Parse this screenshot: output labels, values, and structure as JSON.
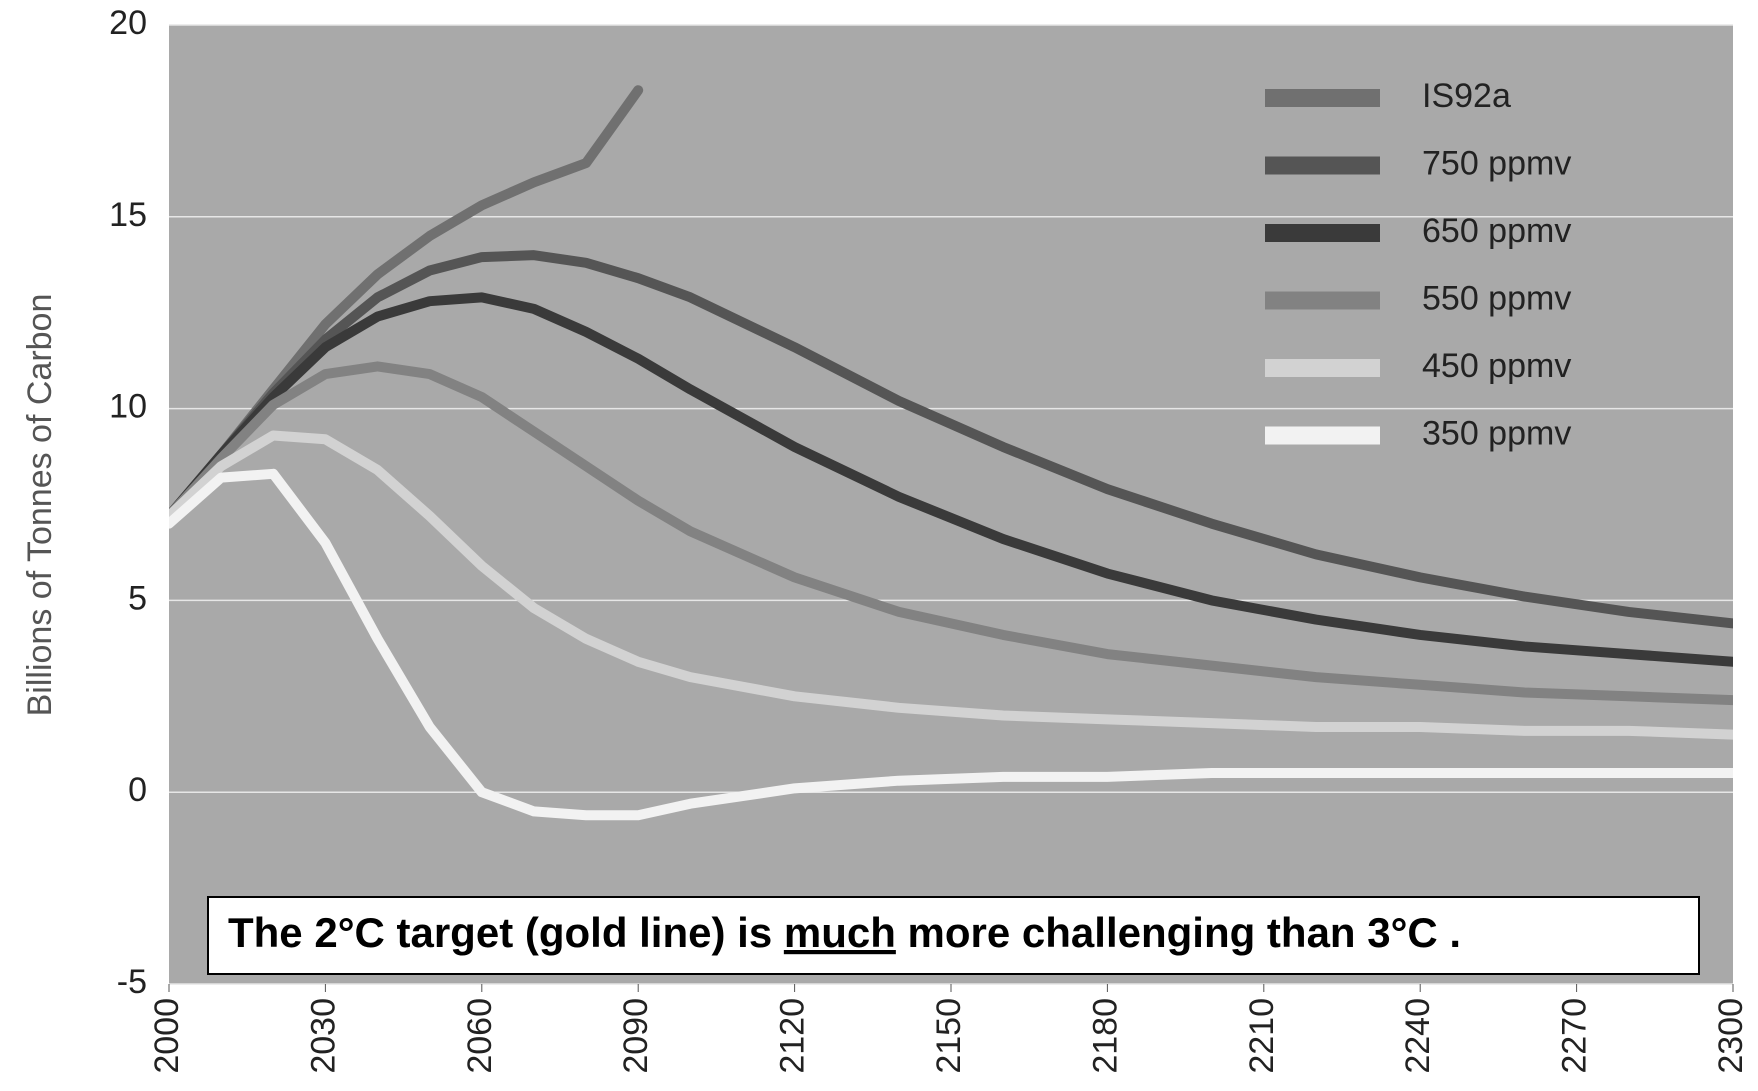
{
  "chart_data": {
    "type": "line",
    "y_label": "Billions of Tonnes of Carbon",
    "annotation": {
      "before": "The 2°C target (gold line) is ",
      "emphasis": "much",
      "after": " more challenging than  3°C ."
    },
    "x": [
      2000,
      2010,
      2020,
      2030,
      2040,
      2050,
      2060,
      2070,
      2080,
      2090,
      2100,
      2120,
      2140,
      2160,
      2180,
      2200,
      2220,
      2240,
      2260,
      2280,
      2300
    ],
    "series": [
      {
        "name": "IS92a",
        "color": "#707070",
        "values": [
          7.2,
          8.8,
          10.5,
          12.2,
          13.5,
          14.5,
          15.3,
          15.9,
          16.4,
          18.3,
          null,
          null,
          null,
          null,
          null,
          null,
          null,
          null,
          null,
          null,
          null
        ]
      },
      {
        "name": "750 ppmv",
        "color": "#555555",
        "values": [
          7.2,
          8.8,
          10.4,
          11.8,
          12.9,
          13.6,
          13.95,
          14,
          13.8,
          13.4,
          12.9,
          11.6,
          10.2,
          9.0,
          7.9,
          7.0,
          6.2,
          5.6,
          5.1,
          4.7,
          4.4
        ]
      },
      {
        "name": "650 ppmv",
        "color": "#3a3a3a",
        "values": [
          7.2,
          8.8,
          10.3,
          11.6,
          12.4,
          12.8,
          12.9,
          12.6,
          12.0,
          11.3,
          10.5,
          9.0,
          7.7,
          6.6,
          5.7,
          5.0,
          4.5,
          4.1,
          3.8,
          3.6,
          3.4
        ]
      },
      {
        "name": "550 ppmv",
        "color": "#828282",
        "values": [
          7.2,
          8.7,
          10.1,
          10.9,
          11.1,
          10.9,
          10.3,
          9.4,
          8.5,
          7.6,
          6.8,
          5.6,
          4.7,
          4.1,
          3.6,
          3.3,
          3.0,
          2.8,
          2.6,
          2.5,
          2.4
        ]
      },
      {
        "name": "450 ppmv",
        "color": "#d2d2d2",
        "values": [
          7.2,
          8.5,
          9.3,
          9.2,
          8.4,
          7.2,
          5.9,
          4.8,
          4.0,
          3.4,
          3.0,
          2.5,
          2.2,
          2.0,
          1.9,
          1.8,
          1.7,
          1.7,
          1.6,
          1.6,
          1.5
        ]
      },
      {
        "name": "350 ppmv",
        "color": "#f2f2f2",
        "values": [
          7.0,
          8.2,
          8.3,
          6.5,
          4.0,
          1.7,
          0.0,
          -0.5,
          -0.6,
          -0.6,
          -0.3,
          0.1,
          0.3,
          0.4,
          0.4,
          0.5,
          0.5,
          0.5,
          0.5,
          0.5,
          0.5
        ]
      }
    ],
    "xlim": [
      2000,
      2300
    ],
    "xticks": [
      2000,
      2030,
      2060,
      2090,
      2120,
      2150,
      2180,
      2210,
      2240,
      2270,
      2300
    ],
    "ylim": [
      -5,
      20
    ],
    "yticks": [
      -5,
      0,
      5,
      10,
      15,
      20
    ],
    "grid": true,
    "background": "#a9a9a9",
    "legend": "upper right"
  }
}
